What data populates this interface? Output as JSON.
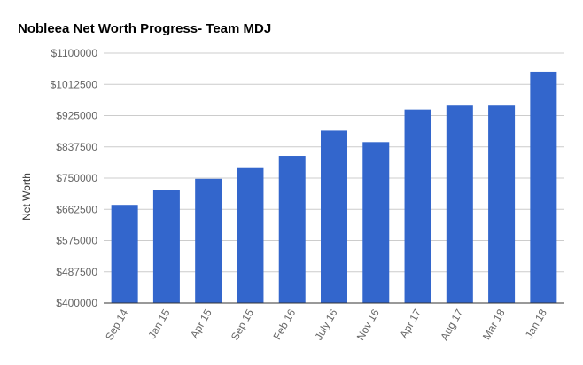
{
  "chart_data": {
    "type": "bar",
    "title": "Nobleea Net Worth Progress- Team MDJ",
    "xlabel": "",
    "ylabel": "Net Worth",
    "categories": [
      "Sep 14",
      "Jan 15",
      "Apr 15",
      "Sep 15",
      "Feb 16",
      "July 16",
      "Nov 16",
      "Apr 17",
      "Aug 17",
      "Mar 18",
      "Jan 18"
    ],
    "values": [
      675000,
      716000,
      748000,
      778000,
      812000,
      883000,
      851000,
      942000,
      953000,
      953000,
      1048000
    ],
    "ylim": [
      400000,
      1100000
    ],
    "yticks": [
      400000,
      487500,
      575000,
      662500,
      750000,
      837500,
      925000,
      1012500,
      1100000
    ],
    "ytick_labels": [
      "$400000",
      "$487500",
      "$575000",
      "$662500",
      "$750000",
      "$837500",
      "$925000",
      "$1012500",
      "$1100000"
    ],
    "grid": true,
    "legend": "none",
    "colors": {
      "bar": "#3366cc",
      "grid": "#cccccc",
      "axis": "#333333"
    }
  }
}
